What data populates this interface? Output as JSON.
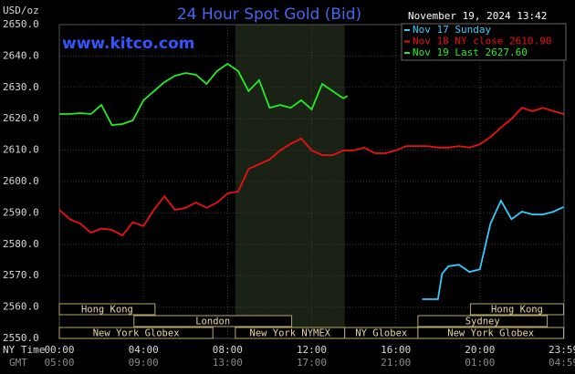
{
  "chart_data": {
    "type": "line",
    "title": "24 Hour Spot Gold (Bid)",
    "watermark": "www.kitco.com",
    "timestamp": "November 19, 2024 13:42",
    "y_label": "USD/oz",
    "x_label": "NY Time",
    "x2_label": "GMT",
    "ylim": [
      2550,
      2650
    ],
    "yticks": [
      {
        "value": 2550,
        "label": "2550.0"
      },
      {
        "value": 2560,
        "label": "2560.0"
      },
      {
        "value": 2570,
        "label": "2570.0"
      },
      {
        "value": 2580,
        "label": "2580.0"
      },
      {
        "value": 2590,
        "label": "2590.0"
      },
      {
        "value": 2600,
        "label": "2600.0"
      },
      {
        "value": 2610,
        "label": "2610.0"
      },
      {
        "value": 2620,
        "label": "2620.0"
      },
      {
        "value": 2630,
        "label": "2630.0"
      },
      {
        "value": 2640,
        "label": "2640.0"
      },
      {
        "value": 2650,
        "label": "2650.0"
      }
    ],
    "xlim": [
      0,
      24
    ],
    "xticks": [
      {
        "value": 0,
        "label": "00:00"
      },
      {
        "value": 4,
        "label": "04:00"
      },
      {
        "value": 8,
        "label": "08:00"
      },
      {
        "value": 12,
        "label": "12:00"
      },
      {
        "value": 16,
        "label": "16:00"
      },
      {
        "value": 20,
        "label": "20:00"
      },
      {
        "value": 23.98,
        "label": "23:59"
      }
    ],
    "x2ticks": [
      {
        "value": 0,
        "label": "05:00"
      },
      {
        "value": 4,
        "label": "09:00"
      },
      {
        "value": 8,
        "label": "13:00"
      },
      {
        "value": 12,
        "label": "17:00"
      },
      {
        "value": 16,
        "label": "21:00"
      },
      {
        "value": 20,
        "label": "01:00"
      },
      {
        "value": 23.98,
        "label": "04:59"
      }
    ],
    "grid": true,
    "highlight": [
      8.37,
      13.57
    ],
    "sessions": [
      {
        "label": "Hong Kong",
        "start": 0,
        "end": 4.55,
        "row": 0
      },
      {
        "label": "Hong Kong",
        "start": 19.55,
        "end": 23.98,
        "row": 0
      },
      {
        "label": "London",
        "start": 3.55,
        "end": 11.05,
        "row": 1
      },
      {
        "label": "Sydney",
        "start": 17.05,
        "end": 23.2,
        "row": 1
      },
      {
        "label": "New York Globex",
        "start": 0,
        "end": 7.3,
        "row": 2
      },
      {
        "label": "New York NYMEX",
        "start": 8.37,
        "end": 13.57,
        "row": 2
      },
      {
        "label": "NY Globex",
        "start": 13.57,
        "end": 17.05,
        "row": 2
      },
      {
        "label": "New York Globex",
        "start": 17.05,
        "end": 23.98,
        "row": 2
      }
    ],
    "series": [
      {
        "name": "Nov 17 Sunday",
        "color": "#33ccff",
        "x": [
          17.25,
          18,
          18.2,
          18.5,
          19,
          19.5,
          20,
          20.5,
          21,
          21.5,
          22,
          22.5,
          23,
          23.5,
          23.98
        ],
        "values": [
          2562.5,
          2562.5,
          2570.6,
          2573,
          2573.5,
          2571.2,
          2572,
          2586.6,
          2593.9,
          2588,
          2590.4,
          2589.5,
          2589.5,
          2590.4,
          2591.9
        ]
      },
      {
        "name": "Nov 18 NY close 2610.90",
        "color": "#ee1111",
        "x": [
          0,
          0.5,
          1,
          1.5,
          2,
          2.5,
          3,
          3.5,
          4,
          4.5,
          5,
          5.5,
          6,
          6.5,
          7,
          7.5,
          8,
          8.5,
          9,
          9.5,
          10,
          10.5,
          11,
          11.5,
          12,
          12.5,
          13,
          13.5,
          14,
          14.5,
          15,
          15.5,
          16,
          16.5,
          17,
          17.5,
          18,
          18.5,
          19,
          19.5,
          20,
          20.5,
          21,
          21.5,
          22,
          22.5,
          23,
          23.5,
          23.98
        ],
        "values": [
          2591,
          2588,
          2586.6,
          2583.7,
          2585,
          2584.6,
          2582.8,
          2587,
          2585.8,
          2591,
          2595.3,
          2591,
          2591.6,
          2593.3,
          2591.6,
          2593.3,
          2596.2,
          2596.8,
          2604,
          2605.5,
          2607,
          2609.9,
          2612,
          2613.7,
          2609.9,
          2608.4,
          2608.4,
          2609.9,
          2609.9,
          2610.8,
          2609,
          2609,
          2609.9,
          2611.3,
          2611.3,
          2611.3,
          2610.8,
          2610.8,
          2611.3,
          2610.8,
          2611.9,
          2614.2,
          2617.2,
          2620,
          2623.5,
          2622.4,
          2623.5,
          2622.4,
          2621.5
        ]
      },
      {
        "name": "Nov 19 Last 2627.60",
        "color": "#22ee22",
        "x": [
          0,
          0.5,
          1,
          1.5,
          2,
          2.5,
          3,
          3.5,
          4,
          4.5,
          5,
          5.5,
          6,
          6.5,
          7,
          7.5,
          8,
          8.5,
          9,
          9.5,
          10,
          10.5,
          11,
          11.5,
          12,
          12.5,
          13,
          13.5,
          13.7
        ],
        "values": [
          2621.5,
          2621.5,
          2621.8,
          2621.5,
          2624.4,
          2618,
          2618.3,
          2619.5,
          2625.9,
          2628.8,
          2631.7,
          2633.7,
          2634.6,
          2634,
          2631.1,
          2635.2,
          2637.5,
          2635.2,
          2628.8,
          2632.3,
          2623.5,
          2624.4,
          2623.5,
          2625.9,
          2623,
          2631.1,
          2628.8,
          2626.5,
          2627.3
        ]
      }
    ]
  }
}
